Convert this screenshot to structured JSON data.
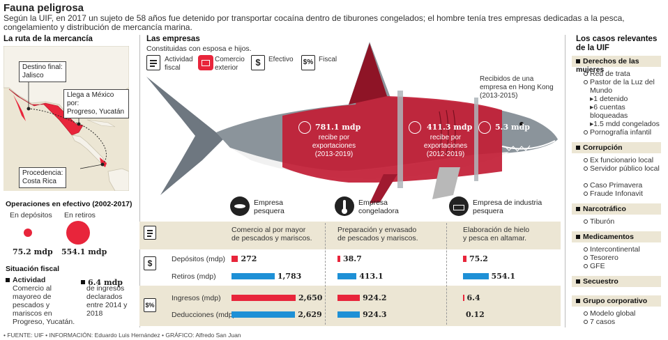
{
  "header": {
    "title": "Fauna peligrosa",
    "intro": "Según la UIF, en 2017 un sujeto de 58 años fue detenido por transportar cocaína dentro de tiburones congelados; el hombre tenía tres empresas dedicadas a la pesca, congelamiento y distribución de mercancía marina."
  },
  "route": {
    "heading": "La ruta de la mercancía",
    "destination": "Destino final:\nJalisco",
    "arrival": "Llega a México por:\nProgreso, Yucatán",
    "origin": "Procedencia:\nCosta Rica"
  },
  "cash_ops": {
    "heading": "Operaciones en efectivo (2002-2017)",
    "deposits_label": "En depósitos",
    "withdrawals_label": "En retiros",
    "deposits_value": "75.2 mdp",
    "withdrawals_value": "554.1 mdp",
    "deposits_amount": 75.2,
    "withdrawals_amount": 554.1
  },
  "fiscal": {
    "heading": "Situación fiscal",
    "activity_title": "Actividad",
    "activity_text": "Comercio al mayoreo de pescados y mariscos en Progreso, Yucatán.",
    "income_value": "6.4 mdp",
    "income_text": "de ingresos declarados entre 2014 y 2018"
  },
  "companies": {
    "heading": "Las empresas",
    "subheading": "Constituidas con esposa e hijos.",
    "legend": [
      "Actividad fiscal",
      "Comercio exterior",
      "Efectivo",
      "Fiscal"
    ],
    "hongkong": "Recibidos de una empresa en Hong Kong (2013-2015)",
    "exports": [
      {
        "value": "781.1 mdp",
        "text": "recibe por exportaciones (2013-2019)"
      },
      {
        "value": "411.3 mdp",
        "text": "recibe por exportaciones (2012-2019)"
      },
      {
        "value": "5.3 mdp",
        "text": ""
      }
    ],
    "names": [
      "Empresa\npesquera",
      "Empresa\ncongeladora",
      "Empresa de industria\npesquera"
    ],
    "activities": [
      "Comercio al por mayor\nde pescados y mariscos.",
      "Preparación y envasado\nde pescados y mariscos.",
      "Elaboración de hielo\ny pesca en altamar."
    ]
  },
  "table": {
    "rows": [
      "Depósitos (mdp)",
      "Retiros (mdp)",
      "Ingresos (mdp)",
      "Deducciones (mdp)"
    ],
    "values": [
      [
        "272",
        "38.7",
        "75.2"
      ],
      [
        "1,783",
        "413.1",
        "554.1"
      ],
      [
        "2,650",
        "924.2",
        "6.4"
      ],
      [
        "2,629",
        "924.3",
        "0.12"
      ]
    ],
    "amounts": [
      [
        272,
        38.7,
        75.2
      ],
      [
        1783,
        413.1,
        554.1
      ],
      [
        2650,
        924.2,
        6.4
      ],
      [
        2629,
        924.3,
        0.12
      ]
    ]
  },
  "cases": {
    "heading": "Los casos relevantes\nde la UIF",
    "groups": [
      {
        "title": "Derechos de las mujeres",
        "items": [
          "Red de trata",
          "Pastor de la Luz del Mundo",
          "▸1 detenido",
          "▸6 cuentas bloqueadas",
          "▸1.5 mdd congelados",
          "Pornografía infantil"
        ]
      },
      {
        "title": "Corrupción",
        "items": [
          "Ex funcionario local",
          "Servidor público local",
          "Caso Primavera",
          "Fraude Infonavit"
        ]
      },
      {
        "title": "Narcotráfico",
        "items": [
          "Tiburón"
        ]
      },
      {
        "title": "Medicamentos",
        "items": [
          "Intercontinental",
          "Tesorero",
          "GFE"
        ]
      },
      {
        "title": "Secuestro",
        "items": []
      },
      {
        "title": "Grupo corporativo",
        "items": [
          "Modelo global",
          "7 casos"
        ]
      }
    ]
  },
  "footer": "• FUENTE: UIF • INFORMACIÓN: Eduardo Luis Hernández • GRÁFICO: Alfredo San Juan",
  "colors": {
    "red": "#e8253b",
    "blue": "#1e90d6",
    "band": "#ece6d4",
    "shark_gray": "#9aa3a9"
  }
}
